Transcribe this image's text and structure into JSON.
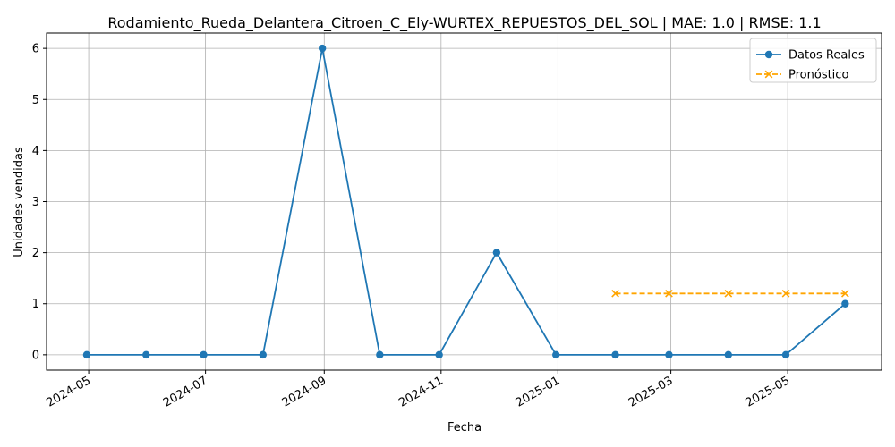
{
  "chart_data": {
    "type": "line",
    "title": "Rodamiento_Rueda_Delantera_Citroen_C_Ely-WURTEX_REPUESTOS_DEL_SOL | MAE: 1.0 | RMSE: 1.1",
    "xlabel": "Fecha",
    "ylabel": "Unidades vendidas",
    "x_tick_labels": [
      "2024-05",
      "2024-07",
      "2024-09",
      "2024-11",
      "2025-01",
      "2025-03",
      "2025-05"
    ],
    "y_tick_labels": [
      "0",
      "1",
      "2",
      "3",
      "4",
      "5",
      "6"
    ],
    "y_ticks": [
      0,
      1,
      2,
      3,
      4,
      5,
      6
    ],
    "ylim": [
      -0.3,
      6.3
    ],
    "xlim": [
      "2024-04-09",
      "2025-06-19"
    ],
    "grid": true,
    "legend_position": "top-right",
    "series": [
      {
        "name": "Datos Reales",
        "color": "#1f77b4",
        "style": "solid",
        "marker": "circle",
        "x": [
          "2024-04-30",
          "2024-05-31",
          "2024-06-30",
          "2024-07-31",
          "2024-08-31",
          "2024-09-30",
          "2024-10-31",
          "2024-11-30",
          "2024-12-31",
          "2025-01-31",
          "2025-02-28",
          "2025-03-31",
          "2025-04-30",
          "2025-05-31"
        ],
        "values": [
          0,
          0,
          0,
          0,
          6,
          0,
          0,
          2,
          0,
          0,
          0,
          0,
          0,
          1
        ]
      },
      {
        "name": "Pronóstico",
        "color": "#ffa500",
        "style": "dashed",
        "marker": "x",
        "x": [
          "2025-01-31",
          "2025-02-28",
          "2025-03-31",
          "2025-04-30",
          "2025-05-31"
        ],
        "values": [
          1.2,
          1.2,
          1.2,
          1.2,
          1.2
        ]
      }
    ]
  }
}
